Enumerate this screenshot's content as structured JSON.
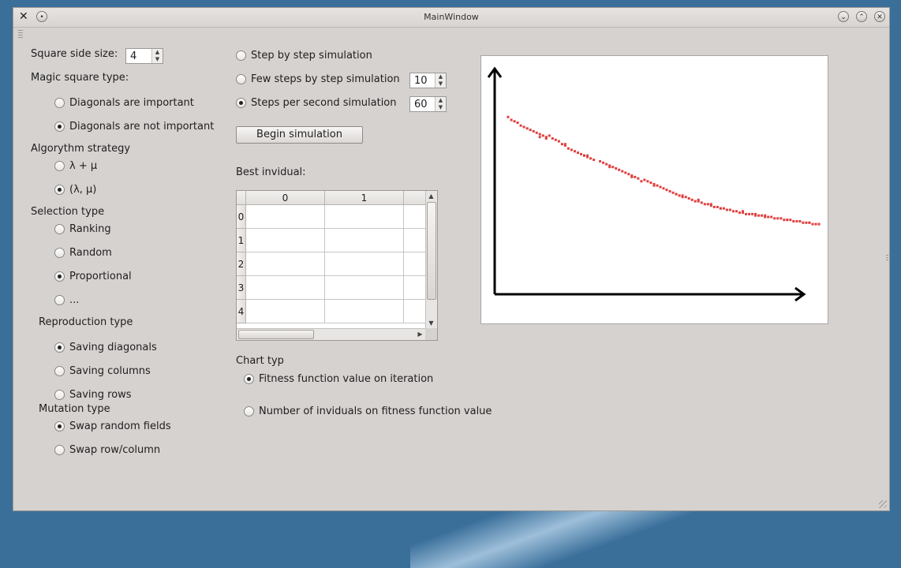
{
  "window": {
    "title": "MainWindow"
  },
  "left_panel": {
    "square_side_label": "Square side size:",
    "square_side_value": "4",
    "magic_type_label": "Magic square type:",
    "magic_options": [
      {
        "label": "Diagonals are important",
        "checked": false
      },
      {
        "label": "Diagonals are not important",
        "checked": true
      }
    ],
    "strategy_label": "Algorythm strategy",
    "strategy_options": [
      {
        "label": "λ + μ",
        "checked": false
      },
      {
        "label": "(λ, μ)",
        "checked": true
      }
    ],
    "selection_label": "Selection type",
    "selection_options": [
      {
        "label": "Ranking",
        "checked": false
      },
      {
        "label": "Random",
        "checked": false
      },
      {
        "label": "Proportional",
        "checked": true
      },
      {
        "label": "...",
        "checked": false
      }
    ],
    "reproduction_label": "Reproduction type",
    "reproduction_options": [
      {
        "label": "Saving diagonals",
        "checked": true
      },
      {
        "label": "Saving columns",
        "checked": false
      },
      {
        "label": "Saving rows",
        "checked": false
      }
    ],
    "mutation_label": "Mutation type",
    "mutation_options": [
      {
        "label": "Swap random fields",
        "checked": true
      },
      {
        "label": "Swap row/column",
        "checked": false
      }
    ]
  },
  "middle_panel": {
    "sim_options": [
      {
        "label": "Step by step simulation",
        "checked": false
      },
      {
        "label": "Few steps by step simulation",
        "checked": false,
        "spin": "10"
      },
      {
        "label": "Steps per second simulation",
        "checked": true,
        "spin": "60"
      }
    ],
    "begin_button": "Begin simulation",
    "best_label": "Best invidual:",
    "table": {
      "columns": [
        "0",
        "1"
      ],
      "rows": [
        "0",
        "1",
        "2",
        "3",
        "4"
      ]
    },
    "chart_type_label": "Chart typ",
    "chart_type_options": [
      {
        "label": "Fitness function value on iteration",
        "checked": true
      },
      {
        "label": "Number of inviduals on fitness function value",
        "checked": false
      }
    ]
  },
  "chart_data": {
    "type": "scatter",
    "title": "",
    "xlabel": "",
    "ylabel": "",
    "grid": false,
    "color": "#e04040",
    "xlim": [
      0,
      100
    ],
    "ylim": [
      0,
      100
    ],
    "points": [
      [
        2,
        86
      ],
      [
        3,
        84
      ],
      [
        4,
        83
      ],
      [
        6,
        80
      ],
      [
        7,
        79
      ],
      [
        8,
        78
      ],
      [
        10,
        76
      ],
      [
        11,
        75
      ],
      [
        12,
        74
      ],
      [
        13,
        73
      ],
      [
        14,
        72
      ],
      [
        15,
        73
      ],
      [
        16,
        71
      ],
      [
        17,
        70
      ],
      [
        18,
        69
      ],
      [
        19,
        67
      ],
      [
        20,
        66
      ],
      [
        21,
        64
      ],
      [
        22,
        63
      ],
      [
        23,
        62
      ],
      [
        24,
        61
      ],
      [
        25,
        60
      ],
      [
        26,
        59
      ],
      [
        27,
        58
      ],
      [
        28,
        57
      ],
      [
        29,
        56
      ],
      [
        31,
        55
      ],
      [
        32,
        54
      ],
      [
        33,
        53
      ],
      [
        34,
        52
      ],
      [
        35,
        51
      ],
      [
        36,
        50
      ],
      [
        37,
        49
      ],
      [
        38,
        48
      ],
      [
        39,
        47
      ],
      [
        40,
        46
      ],
      [
        41,
        45
      ],
      [
        42,
        44
      ],
      [
        43,
        43
      ],
      [
        45,
        42
      ],
      [
        46,
        41
      ],
      [
        47,
        40
      ],
      [
        48,
        39
      ],
      [
        49,
        38
      ],
      [
        50,
        37
      ],
      [
        51,
        36
      ],
      [
        52,
        35
      ],
      [
        53,
        34
      ],
      [
        54,
        33
      ],
      [
        55,
        32
      ],
      [
        56,
        31
      ],
      [
        57,
        30
      ],
      [
        58,
        30
      ],
      [
        59,
        29
      ],
      [
        60,
        28
      ],
      [
        61,
        27
      ],
      [
        62,
        27
      ],
      [
        63,
        26
      ],
      [
        64,
        25
      ],
      [
        65,
        25
      ],
      [
        66,
        24
      ],
      [
        67,
        23
      ],
      [
        68,
        23
      ],
      [
        69,
        22
      ],
      [
        70,
        22
      ],
      [
        71,
        21
      ],
      [
        72,
        21
      ],
      [
        73,
        20
      ],
      [
        74,
        20
      ],
      [
        75,
        19
      ],
      [
        76,
        19
      ],
      [
        77,
        18
      ],
      [
        78,
        18
      ],
      [
        79,
        18
      ],
      [
        80,
        17
      ],
      [
        81,
        17
      ],
      [
        82,
        17
      ],
      [
        83,
        16
      ],
      [
        84,
        16
      ],
      [
        85,
        16
      ],
      [
        86,
        15
      ],
      [
        87,
        15
      ],
      [
        88,
        15
      ],
      [
        89,
        14
      ],
      [
        90,
        14
      ],
      [
        91,
        14
      ],
      [
        92,
        13
      ],
      [
        93,
        13
      ],
      [
        94,
        13
      ],
      [
        95,
        12
      ],
      [
        96,
        12
      ],
      [
        97,
        12
      ],
      [
        98,
        11
      ],
      [
        99,
        11
      ],
      [
        100,
        11
      ],
      [
        5,
        82
      ],
      [
        9,
        77
      ],
      [
        14,
        71
      ],
      [
        20,
        67
      ],
      [
        27,
        59
      ],
      [
        34,
        51
      ],
      [
        41,
        44
      ],
      [
        48,
        38
      ],
      [
        55,
        32
      ],
      [
        62,
        28
      ],
      [
        69,
        22
      ],
      [
        76,
        20
      ],
      [
        83,
        17
      ],
      [
        90,
        14
      ],
      [
        97,
        12
      ],
      [
        12,
        72
      ],
      [
        26,
        59
      ],
      [
        44,
        41
      ],
      [
        57,
        31
      ],
      [
        66,
        25
      ],
      [
        80,
        18
      ]
    ]
  }
}
